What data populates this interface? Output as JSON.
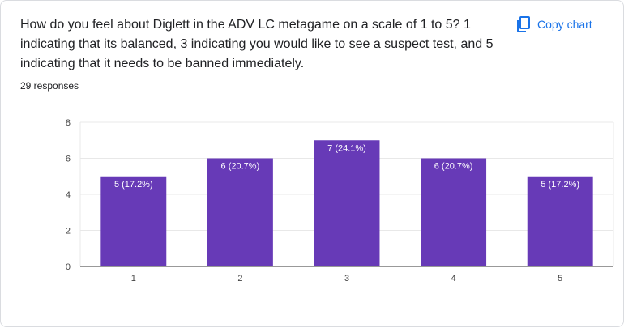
{
  "question": "How do you feel about Diglett in the ADV LC metagame on a scale of 1 to 5? 1 indicating that its balanced, 3 indicating you would like to see a suspect test, and 5 indicating that it needs to be banned immediately.",
  "responses_label": "29 responses",
  "copy_button": {
    "label": "Copy chart",
    "icon": "copy-icon"
  },
  "colors": {
    "bar": "#673ab7",
    "accent": "#1a73e8",
    "grid": "#e8e8e8",
    "text": "#202124"
  },
  "chart_data": {
    "type": "bar",
    "categories": [
      "1",
      "2",
      "3",
      "4",
      "5"
    ],
    "values": [
      5,
      6,
      7,
      6,
      5
    ],
    "data_labels": [
      "5 (17.2%)",
      "6 (20.7%)",
      "7 (24.1%)",
      "6 (20.7%)",
      "5 (17.2%)"
    ],
    "yticks": [
      "0",
      "2",
      "4",
      "6",
      "8"
    ],
    "ylim": [
      0,
      8
    ],
    "title": "",
    "xlabel": "",
    "ylabel": "",
    "grid": true
  }
}
